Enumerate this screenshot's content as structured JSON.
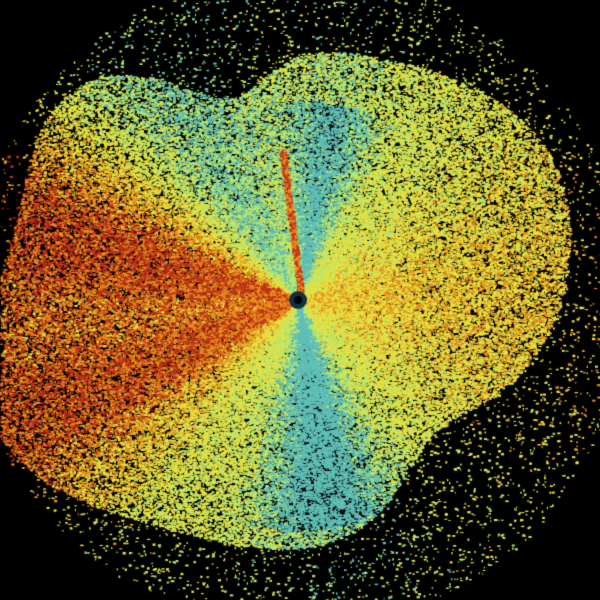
{
  "image": {
    "type": "radar-sweep",
    "background_color": "#000000",
    "palette": {
      "red": "#c0301a",
      "orange": "#e8901c",
      "yellow": "#e8e040",
      "light_green": "#b8e870",
      "cyan": "#60c0b8",
      "center_dark": "#103040"
    }
  }
}
